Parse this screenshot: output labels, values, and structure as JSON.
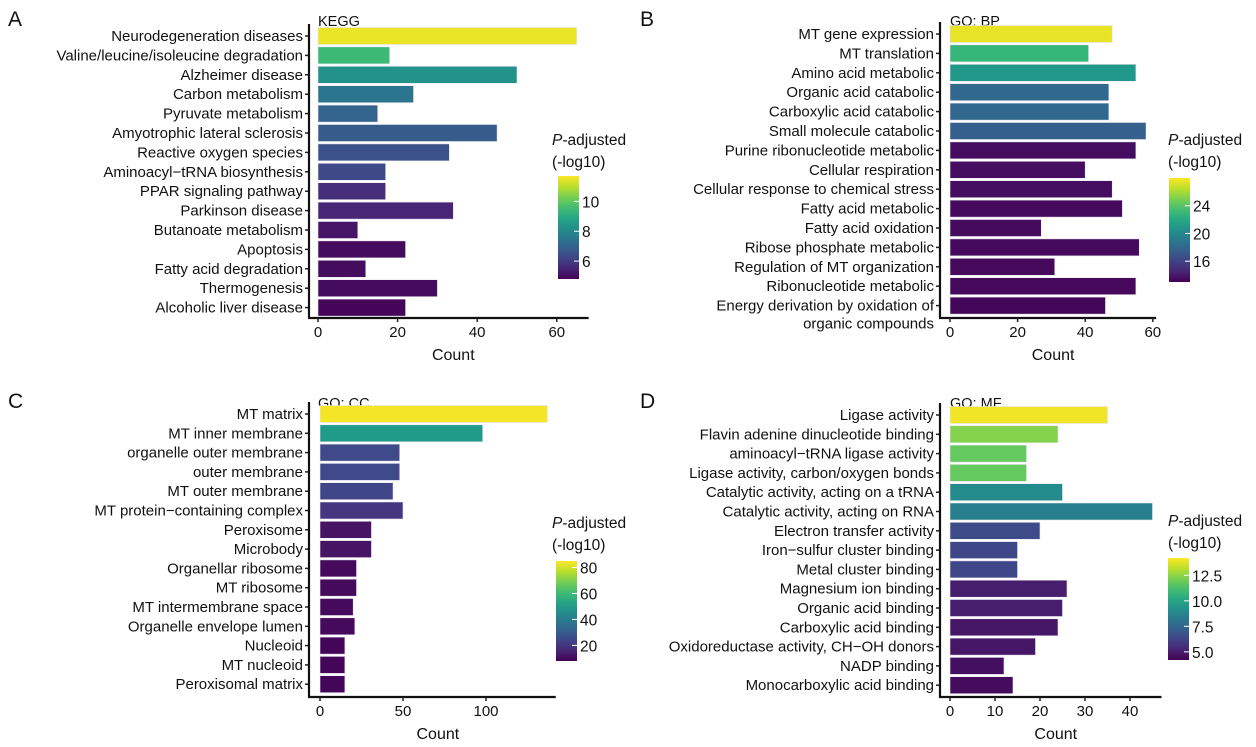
{
  "chart_data": [
    {
      "type": "bar",
      "orientation": "horizontal",
      "panel_letter": "A",
      "title": "KEGG",
      "xlabel": "Count",
      "xlim": [
        0,
        68
      ],
      "xticks": [
        0,
        20,
        40,
        60
      ],
      "legend_title": [
        "P",
        "-adjusted",
        "(-log10)"
      ],
      "legend_ticks": [
        6,
        8,
        10
      ],
      "color_range": [
        4.8,
        11.7
      ],
      "categories": [
        "Neurodegeneration diseases",
        "Valine/leucine/isoleucine degradation",
        "Alzheimer disease",
        "Carbon metabolism",
        "Pyruvate metabolism",
        "Amyotrophic lateral sclerosis",
        "Reactive oxygen species",
        "Aminoacyl−tRNA biosynthesis",
        "PPAR signaling pathway",
        "Parkinson disease",
        "Butanoate metabolism",
        "Apoptosis",
        "Fatty acid degradation",
        "Thermogenesis",
        "Alcoholic liver disease"
      ],
      "count": [
        65,
        18,
        50,
        24,
        15,
        45,
        33,
        17,
        17,
        34,
        10,
        22,
        12,
        30,
        22
      ],
      "padj_log10": [
        11.5,
        9.5,
        8.3,
        7.5,
        7.0,
        6.8,
        6.5,
        6.3,
        5.7,
        5.5,
        5.2,
        5.0,
        5.0,
        5.0,
        4.9
      ]
    },
    {
      "type": "bar",
      "orientation": "horizontal",
      "panel_letter": "B",
      "title": "GO: BP",
      "xlabel": "Count",
      "xlim": [
        0,
        61
      ],
      "xticks": [
        0,
        20,
        40,
        60
      ],
      "legend_title": [
        "P",
        "-adjusted",
        "(-log10)"
      ],
      "legend_ticks": [
        16,
        20,
        24
      ],
      "color_range": [
        13,
        28
      ],
      "categories": [
        "MT gene expression",
        "MT translation",
        "Amino acid metabolic",
        "Organic acid catabolic",
        "Carboxylic acid catabolic",
        "Small molecule catabolic",
        "Purine ribonucleotide metabolic",
        "Cellular respiration",
        "Cellular response to chemical stress",
        "Fatty acid metabolic",
        "Fatty acid oxidation",
        "Ribose phosphate metabolic",
        "Regulation of MT organization",
        "Ribonucleotide metabolic",
        "Energy derivation by oxidation of|organic compounds"
      ],
      "count": [
        48,
        41,
        55,
        47,
        47,
        58,
        55,
        40,
        48,
        51,
        27,
        56,
        31,
        55,
        46
      ],
      "padj_log10": [
        27.5,
        23,
        21,
        18,
        18,
        17.5,
        13.5,
        13.5,
        13.5,
        13.4,
        13.4,
        13.4,
        13.3,
        13.3,
        13.2
      ]
    },
    {
      "type": "bar",
      "orientation": "horizontal",
      "panel_letter": "C",
      "title": "GO: CC",
      "xlabel": "Count",
      "xlim": [
        0,
        142
      ],
      "xticks": [
        0,
        50,
        100
      ],
      "legend_title": [
        "P",
        "-adjusted",
        "(-log10)"
      ],
      "legend_ticks": [
        20,
        40,
        60,
        80
      ],
      "color_range": [
        8,
        85
      ],
      "categories": [
        "MT matrix",
        "MT inner membrane",
        "organelle outer membrane",
        "outer membrane",
        "MT outer membrane",
        "MT protein−containing complex",
        "Peroxisome",
        "Microbody",
        "Organellar ribosome",
        "MT ribosome",
        "MT intermembrane space",
        "Organelle envelope lumen",
        "Nucleoid",
        "MT nucleoid",
        "Peroxisomal matrix"
      ],
      "count": [
        137,
        98,
        48,
        48,
        44,
        50,
        31,
        31,
        22,
        22,
        20,
        21,
        15,
        15,
        15
      ],
      "padj_log10": [
        84,
        50,
        25,
        25,
        24,
        20,
        12,
        12,
        10,
        10,
        10,
        10,
        9,
        9,
        9
      ]
    },
    {
      "type": "bar",
      "orientation": "horizontal",
      "panel_letter": "D",
      "title": "GO: MF",
      "xlabel": "Count",
      "xlim": [
        0,
        47
      ],
      "xticks": [
        0,
        10,
        20,
        30,
        40
      ],
      "legend_title": [
        "P",
        "-adjusted",
        "(-log10)"
      ],
      "legend_ticks": [
        5.0,
        7.5,
        10.0,
        12.5
      ],
      "color_range": [
        4.2,
        14.2
      ],
      "categories": [
        "Ligase activity",
        "Flavin adenine dinucleotide binding",
        "aminoacyl−tRNA ligase activity",
        "Ligase activity, carbon/oxygen bonds",
        "Catalytic activity, acting on a tRNA",
        "Catalytic activity, acting on RNA",
        "Electron transfer activity",
        "Iron−sulfur cluster binding",
        "Metal cluster binding",
        "Magnesium ion binding",
        "Organic acid binding",
        "Carboxylic acid binding",
        "Oxidoreductase activity, CH−OH donors",
        "NADP binding",
        "Monocarboxylic acid binding"
      ],
      "count": [
        35,
        24,
        17,
        17,
        25,
        45,
        20,
        15,
        15,
        26,
        25,
        24,
        19,
        12,
        14
      ],
      "padj_log10": [
        14,
        12.3,
        11.8,
        11.8,
        9,
        8.5,
        6.5,
        6.3,
        6.3,
        5,
        5,
        4.8,
        4.8,
        4.6,
        4.5
      ]
    }
  ]
}
